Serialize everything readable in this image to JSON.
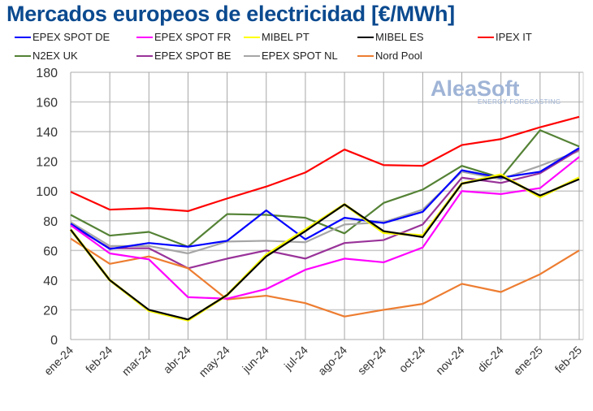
{
  "chart_data": {
    "type": "line",
    "title": "Mercados europeos de electricidad [€/MWh]",
    "xlabel": "",
    "ylabel": "",
    "ylim": [
      0,
      180
    ],
    "yticks": [
      0,
      20,
      40,
      60,
      80,
      100,
      120,
      140,
      160,
      180
    ],
    "grid": true,
    "legend_position": "top",
    "categories": [
      "ene-24",
      "feb-24",
      "mar-24",
      "abr-24",
      "may-24",
      "jun-24",
      "jul-24",
      "ago-24",
      "sep-24",
      "oct-24",
      "nov-24",
      "dic-24",
      "ene-25",
      "feb-25"
    ],
    "series": [
      {
        "name": "EPEX SPOT DE",
        "color": "#0000ff",
        "values": [
          78,
          61,
          65,
          62.5,
          66.5,
          87,
          67.5,
          82,
          78.5,
          86,
          114,
          109,
          113,
          129
        ]
      },
      {
        "name": "EPEX SPOT FR",
        "color": "#ff00ff",
        "values": [
          77,
          58,
          54,
          28.5,
          27.5,
          34,
          47,
          54.5,
          52,
          62,
          100,
          98,
          102,
          123
        ]
      },
      {
        "name": "MIBEL PT",
        "color": "#ffff00",
        "values": [
          74,
          40,
          19.5,
          13,
          30,
          57,
          74,
          91,
          72,
          70,
          105,
          111,
          96,
          109
        ]
      },
      {
        "name": "MIBEL ES",
        "color": "#000000",
        "values": [
          74,
          40,
          20,
          13.5,
          30,
          56,
          73,
          91,
          73,
          69,
          105,
          110,
          97,
          108
        ]
      },
      {
        "name": "IPEX IT",
        "color": "#ff0000",
        "values": [
          99.5,
          87.5,
          88.5,
          86.5,
          95,
          103,
          112.5,
          128,
          117.5,
          117,
          131,
          135,
          143,
          150
        ]
      },
      {
        "name": "N2EX UK",
        "color": "#548235",
        "values": [
          84,
          70,
          72.5,
          62.5,
          84.5,
          84,
          82,
          71.5,
          92,
          101,
          117,
          109,
          141,
          130
        ]
      },
      {
        "name": "EPEX SPOT BE",
        "color": "#993399",
        "values": [
          77,
          61.5,
          61.5,
          48,
          54.5,
          60,
          54.5,
          65,
          67,
          77.5,
          109,
          105.5,
          112,
          128
        ]
      },
      {
        "name": "EPEX SPOT NL",
        "color": "#a6a6a6",
        "values": [
          79,
          63,
          63,
          58,
          66,
          66.5,
          65.5,
          77.5,
          79,
          87.5,
          113,
          108,
          117,
          127
        ]
      },
      {
        "name": "Nord Pool",
        "color": "#ed7d31",
        "values": [
          68,
          51,
          56,
          48,
          27,
          29.5,
          24.5,
          15.5,
          20,
          24,
          37.5,
          32,
          44,
          60
        ]
      }
    ]
  },
  "logo": {
    "name": "AleaSoft",
    "tagline": "ENERGY FORECASTING"
  }
}
